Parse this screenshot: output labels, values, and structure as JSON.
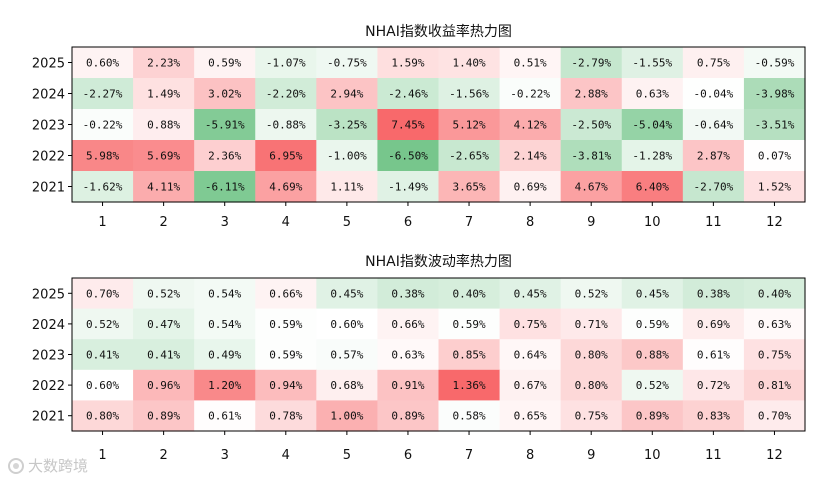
{
  "chart_data": [
    {
      "type": "heatmap",
      "title": "NHAI指数收益率热力图",
      "x": [
        "1",
        "2",
        "3",
        "4",
        "5",
        "6",
        "7",
        "8",
        "9",
        "10",
        "11",
        "12"
      ],
      "y": [
        "2025",
        "2024",
        "2023",
        "2022",
        "2021"
      ],
      "values": [
        [
          0.6,
          2.23,
          0.59,
          -1.07,
          -0.75,
          1.59,
          1.4,
          0.51,
          -2.79,
          -1.55,
          0.75,
          -0.59
        ],
        [
          -2.27,
          1.49,
          3.02,
          -2.2,
          2.94,
          -2.46,
          -1.56,
          -0.22,
          2.88,
          0.63,
          -0.04,
          -3.98
        ],
        [
          -0.22,
          0.88,
          -5.91,
          -0.88,
          -3.25,
          7.45,
          5.12,
          4.12,
          -2.5,
          -5.04,
          -0.64,
          -3.51
        ],
        [
          5.98,
          5.69,
          2.36,
          6.95,
          -1.0,
          -6.5,
          -2.65,
          2.14,
          -3.81,
          -1.28,
          2.87,
          0.07
        ],
        [
          -1.62,
          4.11,
          -6.11,
          4.69,
          1.11,
          -1.49,
          3.65,
          0.69,
          4.67,
          6.4,
          -2.7,
          1.52
        ]
      ],
      "labels": [
        [
          "0.60%",
          "2.23%",
          "0.59%",
          "-1.07%",
          "-0.75%",
          "1.59%",
          "1.40%",
          "0.51%",
          "-2.79%",
          "-1.55%",
          "0.75%",
          "-0.59%"
        ],
        [
          "-2.27%",
          "1.49%",
          "3.02%",
          "-2.20%",
          "2.94%",
          "-2.46%",
          "-1.56%",
          "-0.22%",
          "2.88%",
          "0.63%",
          "-0.04%",
          "-3.98%"
        ],
        [
          "-0.22%",
          "0.88%",
          "-5.91%",
          "-0.88%",
          "-3.25%",
          "7.45%",
          "5.12%",
          "4.12%",
          "-2.50%",
          "-5.04%",
          "-0.64%",
          "-3.51%"
        ],
        [
          "5.98%",
          "5.69%",
          "2.36%",
          "6.95%",
          "-1.00%",
          "-6.50%",
          "-2.65%",
          "2.14%",
          "-3.81%",
          "-1.28%",
          "2.87%",
          "0.07%"
        ],
        [
          "-1.62%",
          "4.11%",
          "-6.11%",
          "4.69%",
          "1.11%",
          "-1.49%",
          "3.65%",
          "0.69%",
          "4.67%",
          "6.40%",
          "-2.70%",
          "1.52%"
        ]
      ],
      "color_scale": {
        "negative": "#63be7b",
        "mid": "#ffffff",
        "positive": "#f8696b",
        "center": 0
      }
    },
    {
      "type": "heatmap",
      "title": "NHAI指数波动率热力图",
      "x": [
        "1",
        "2",
        "3",
        "4",
        "5",
        "6",
        "7",
        "8",
        "9",
        "10",
        "11",
        "12"
      ],
      "y": [
        "2025",
        "2024",
        "2023",
        "2022",
        "2021"
      ],
      "values": [
        [
          0.7,
          0.52,
          0.54,
          0.66,
          0.45,
          0.38,
          0.4,
          0.45,
          0.52,
          0.45,
          0.38,
          0.4
        ],
        [
          0.52,
          0.47,
          0.54,
          0.59,
          0.6,
          0.66,
          0.59,
          0.75,
          0.71,
          0.59,
          0.69,
          0.63
        ],
        [
          0.41,
          0.41,
          0.49,
          0.59,
          0.57,
          0.63,
          0.85,
          0.64,
          0.8,
          0.88,
          0.61,
          0.75
        ],
        [
          0.6,
          0.96,
          1.2,
          0.94,
          0.68,
          0.91,
          1.36,
          0.67,
          0.8,
          0.52,
          0.72,
          0.81
        ],
        [
          0.8,
          0.89,
          0.61,
          0.78,
          1.0,
          0.89,
          0.58,
          0.65,
          0.75,
          0.89,
          0.83,
          0.7
        ]
      ],
      "labels": [
        [
          "0.70%",
          "0.52%",
          "0.54%",
          "0.66%",
          "0.45%",
          "0.38%",
          "0.40%",
          "0.45%",
          "0.52%",
          "0.45%",
          "0.38%",
          "0.40%"
        ],
        [
          "0.52%",
          "0.47%",
          "0.54%",
          "0.59%",
          "0.60%",
          "0.66%",
          "0.59%",
          "0.75%",
          "0.71%",
          "0.59%",
          "0.69%",
          "0.63%"
        ],
        [
          "0.41%",
          "0.41%",
          "0.49%",
          "0.59%",
          "0.57%",
          "0.63%",
          "0.85%",
          "0.64%",
          "0.80%",
          "0.88%",
          "0.61%",
          "0.75%"
        ],
        [
          "0.60%",
          "0.96%",
          "1.20%",
          "0.94%",
          "0.68%",
          "0.91%",
          "1.36%",
          "0.67%",
          "0.80%",
          "0.52%",
          "0.72%",
          "0.81%"
        ],
        [
          "0.80%",
          "0.89%",
          "0.61%",
          "0.78%",
          "1.00%",
          "0.89%",
          "0.58%",
          "0.65%",
          "0.75%",
          "0.89%",
          "0.83%",
          "0.70%"
        ]
      ],
      "color_scale": {
        "negative": "#63be7b",
        "mid": "#ffffff",
        "positive": "#f8696b",
        "center": 0.6
      }
    }
  ],
  "watermark": {
    "text": "大数跨境"
  }
}
